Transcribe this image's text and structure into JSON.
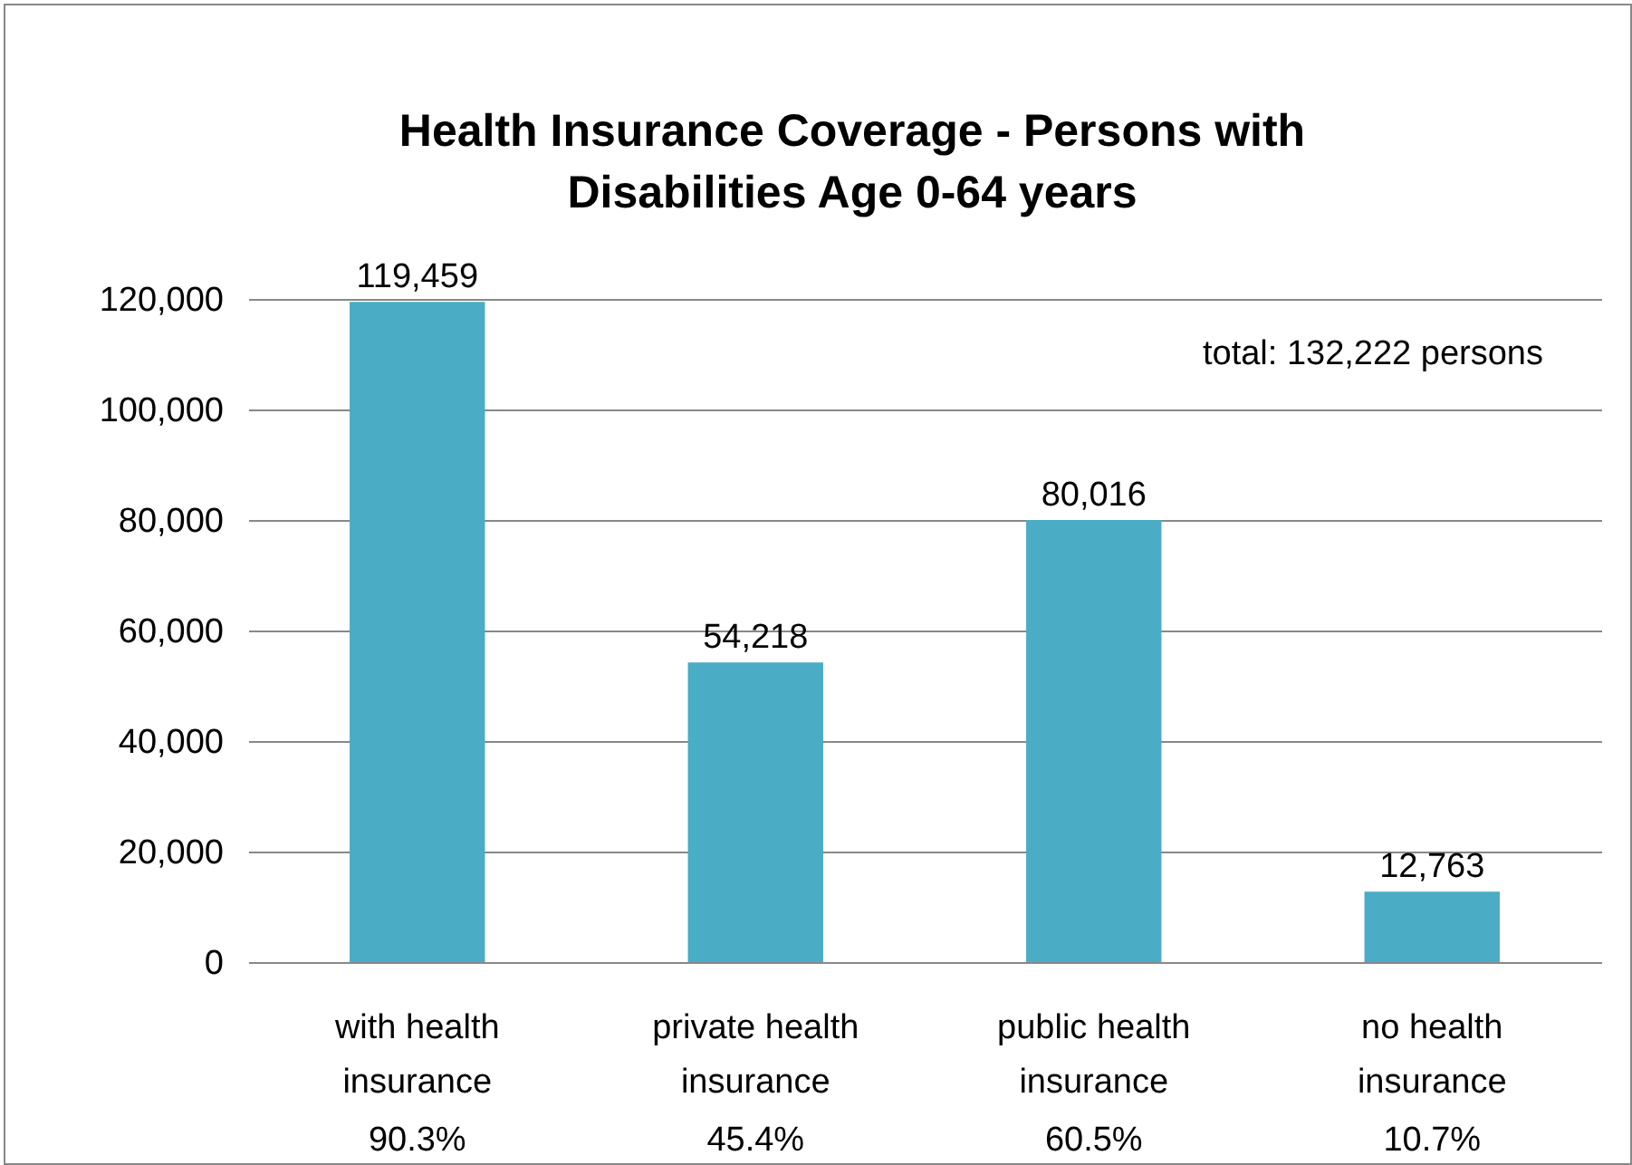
{
  "chart_data": {
    "type": "bar",
    "title": "Health Insurance Coverage - Persons with Disabilities Age 0-64 years",
    "categories": [
      "with health insurance",
      "private health insurance",
      "public health insurance",
      "no health insurance"
    ],
    "values": [
      119459,
      54218,
      80016,
      12763
    ],
    "color": "#4bacc6",
    "value_labels": [
      "119,459",
      "54,218",
      "80,016",
      "12,763"
    ],
    "ylim": [
      0,
      120000
    ],
    "yticks": [
      {
        "value": 0,
        "label": "0"
      },
      {
        "value": 20000,
        "label": "20,000"
      },
      {
        "value": 40000,
        "label": "40,000"
      },
      {
        "value": 60000,
        "label": "60,000"
      },
      {
        "value": 80000,
        "label": "80,000"
      },
      {
        "value": 100000,
        "label": "100,000"
      },
      {
        "value": 120000,
        "label": "120,000"
      }
    ],
    "grid": "y",
    "annotations": [
      "total:  132,222 persons",
      "90.3%",
      "45.4%",
      "60.5%",
      "10.7%"
    ]
  }
}
